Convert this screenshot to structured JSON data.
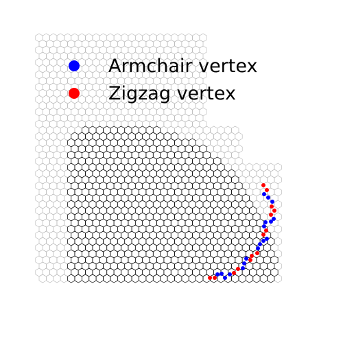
{
  "legend": [
    {
      "key": "armchair",
      "label": "Armchair vertex",
      "color": "#0000ff"
    },
    {
      "key": "zigzag",
      "label": "Zigzag vertex",
      "color": "#ff0000"
    }
  ],
  "lattice": {
    "outer_edge_color": "#b4b4b4",
    "inner_edge_color": "#000000"
  }
}
